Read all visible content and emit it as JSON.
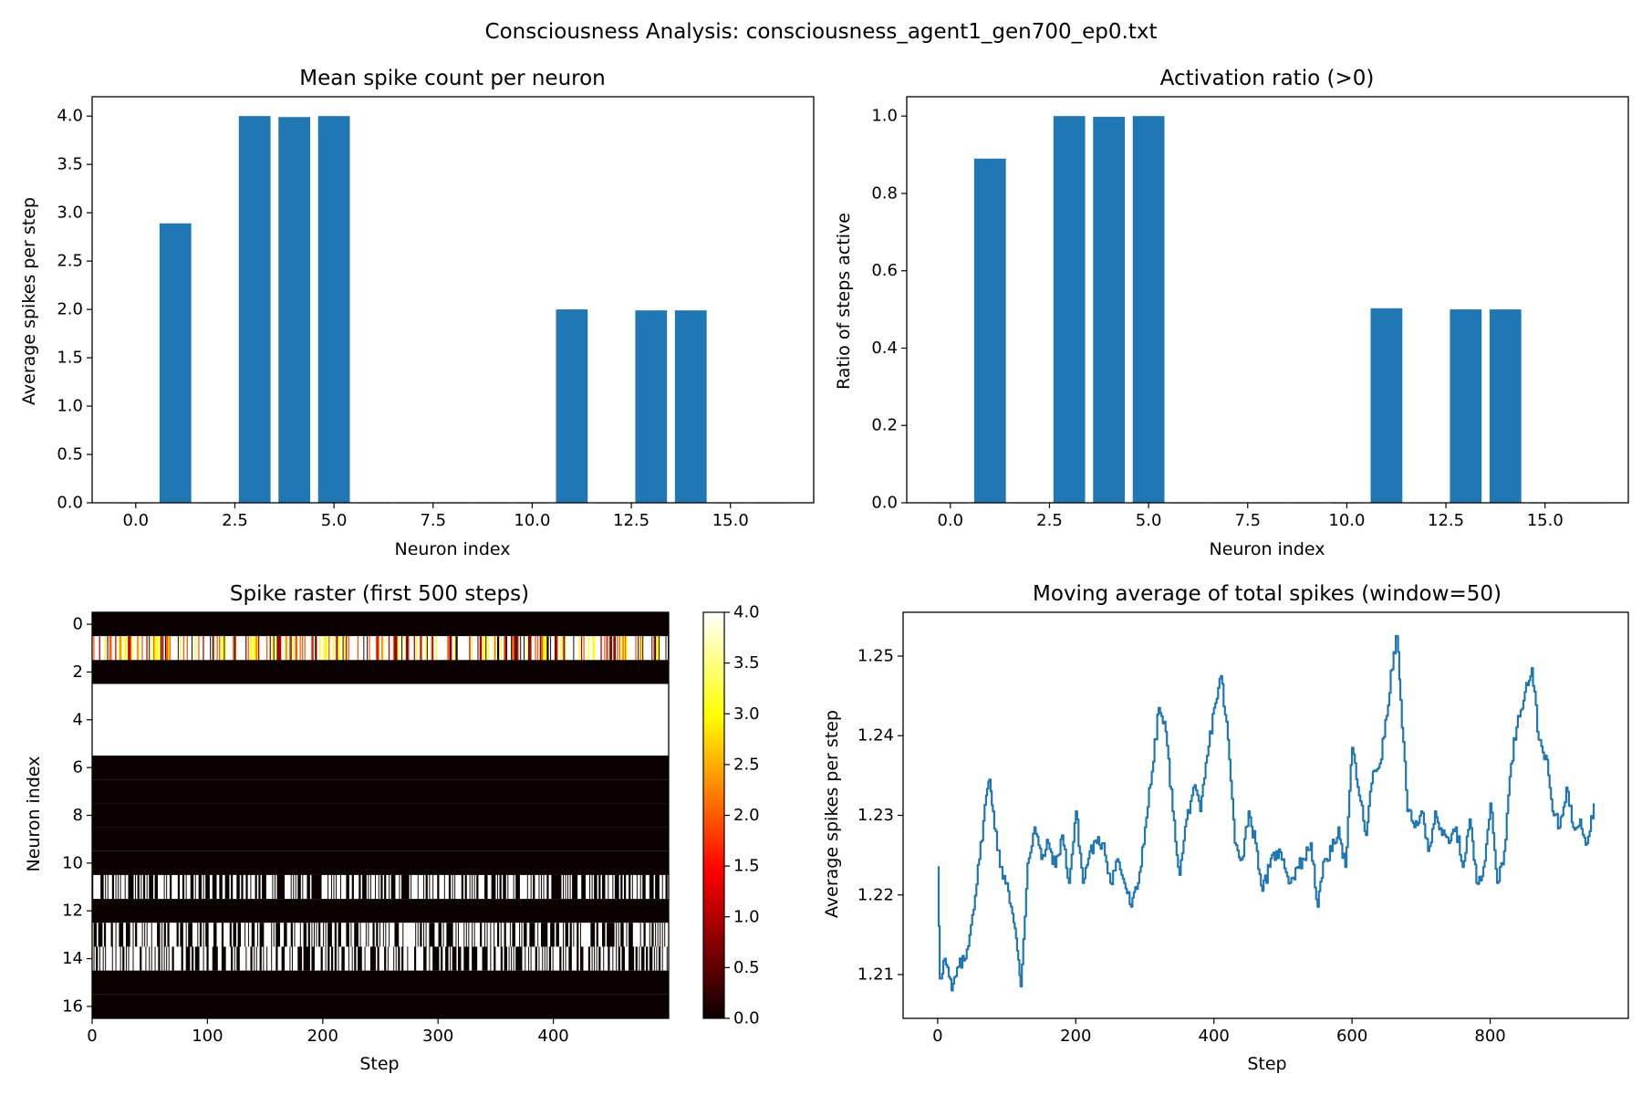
{
  "figure": {
    "suptitle": "Consciousness Analysis: consciousness_agent1_gen700_ep0.txt"
  },
  "colors": {
    "bar": "#1f77b4",
    "line": "#1f77b4",
    "axes": "#000000"
  },
  "chart_data": [
    {
      "id": "mean",
      "type": "bar",
      "title": "Mean spike count per neuron",
      "xlabel": "Neuron index",
      "ylabel": "Average spikes per step",
      "xlim": [
        -1.1,
        17.1
      ],
      "ylim": [
        0,
        4.2
      ],
      "xticks": [
        0,
        2.5,
        5,
        7.5,
        10,
        12.5,
        15
      ],
      "xtick_labels": [
        "0.0",
        "2.5",
        "5.0",
        "7.5",
        "10.0",
        "12.5",
        "15.0"
      ],
      "yticks": [
        0,
        0.5,
        1,
        1.5,
        2,
        2.5,
        3,
        3.5,
        4
      ],
      "ytick_labels": [
        "0.0",
        "0.5",
        "1.0",
        "1.5",
        "2.0",
        "2.5",
        "3.0",
        "3.5",
        "4.0"
      ],
      "categories": [
        0,
        1,
        2,
        3,
        4,
        5,
        6,
        7,
        8,
        9,
        10,
        11,
        12,
        13,
        14,
        15,
        16
      ],
      "values": [
        0,
        2.89,
        0,
        4.0,
        3.99,
        4.0,
        0,
        0,
        0,
        0,
        0,
        2.0,
        0,
        1.99,
        1.99,
        0,
        0
      ]
    },
    {
      "id": "ratio",
      "type": "bar",
      "title": "Activation ratio (>0)",
      "xlabel": "Neuron index",
      "ylabel": "Ratio of steps active",
      "xlim": [
        -1.1,
        17.1
      ],
      "ylim": [
        0,
        1.05
      ],
      "xticks": [
        0,
        2.5,
        5,
        7.5,
        10,
        12.5,
        15
      ],
      "xtick_labels": [
        "0.0",
        "2.5",
        "5.0",
        "7.5",
        "10.0",
        "12.5",
        "15.0"
      ],
      "yticks": [
        0,
        0.2,
        0.4,
        0.6,
        0.8,
        1.0
      ],
      "ytick_labels": [
        "0.0",
        "0.2",
        "0.4",
        "0.6",
        "0.8",
        "1.0"
      ],
      "categories": [
        0,
        1,
        2,
        3,
        4,
        5,
        6,
        7,
        8,
        9,
        10,
        11,
        12,
        13,
        14,
        15,
        16
      ],
      "values": [
        0,
        0.89,
        0,
        1.0,
        0.998,
        1.0,
        0,
        0,
        0,
        0,
        0,
        0.503,
        0,
        0.5,
        0.5,
        0,
        0
      ]
    },
    {
      "id": "raster",
      "type": "heatmap",
      "title": "Spike raster (first 500 steps)",
      "xlabel": "Step",
      "ylabel": "Neuron index",
      "xlim": [
        0,
        500
      ],
      "ylim": [
        16.5,
        -0.5
      ],
      "xticks": [
        0,
        100,
        200,
        300,
        400
      ],
      "xtick_labels": [
        "0",
        "100",
        "200",
        "300",
        "400"
      ],
      "yticks": [
        0,
        2,
        4,
        6,
        8,
        10,
        12,
        14,
        16
      ],
      "ytick_labels": [
        "0",
        "2",
        "4",
        "6",
        "8",
        "10",
        "12",
        "14",
        "16"
      ],
      "colorbar": {
        "range": [
          0,
          4
        ],
        "ticks": [
          0,
          0.5,
          1,
          1.5,
          2,
          2.5,
          3,
          3.5,
          4
        ],
        "tick_labels": [
          "0.0",
          "0.5",
          "1.0",
          "1.5",
          "2.0",
          "2.5",
          "3.0",
          "3.5",
          "4.0"
        ],
        "colormap": "hot"
      },
      "rows": [
        {
          "neuron": 0,
          "pattern": "zero"
        },
        {
          "neuron": 1,
          "pattern": "mixed_0_4"
        },
        {
          "neuron": 2,
          "pattern": "zero"
        },
        {
          "neuron": 3,
          "pattern": "constant",
          "value": 4
        },
        {
          "neuron": 4,
          "pattern": "constant",
          "value": 4
        },
        {
          "neuron": 5,
          "pattern": "constant",
          "value": 4
        },
        {
          "neuron": 6,
          "pattern": "zero"
        },
        {
          "neuron": 7,
          "pattern": "zero"
        },
        {
          "neuron": 8,
          "pattern": "zero"
        },
        {
          "neuron": 9,
          "pattern": "zero"
        },
        {
          "neuron": 10,
          "pattern": "zero"
        },
        {
          "neuron": 11,
          "pattern": "binary_0_4",
          "active_ratio": 0.5
        },
        {
          "neuron": 12,
          "pattern": "zero"
        },
        {
          "neuron": 13,
          "pattern": "binary_0_4",
          "active_ratio": 0.5
        },
        {
          "neuron": 14,
          "pattern": "binary_0_4",
          "active_ratio": 0.5
        },
        {
          "neuron": 15,
          "pattern": "zero"
        },
        {
          "neuron": 16,
          "pattern": "zero"
        }
      ]
    },
    {
      "id": "moving",
      "type": "line",
      "title": "Moving average of total spikes (window=50)",
      "xlabel": "Step",
      "ylabel": "Average spikes per step",
      "xlim": [
        -50,
        1000
      ],
      "ylim": [
        1.2045,
        1.2555
      ],
      "xticks": [
        0,
        200,
        400,
        600,
        800
      ],
      "xtick_labels": [
        "0",
        "200",
        "400",
        "600",
        "800"
      ],
      "yticks": [
        1.21,
        1.22,
        1.23,
        1.24,
        1.25
      ],
      "ytick_labels": [
        "1.21",
        "1.22",
        "1.23",
        "1.24",
        "1.25"
      ],
      "x": [
        0,
        3,
        10,
        20,
        30,
        40,
        50,
        60,
        70,
        75,
        80,
        90,
        100,
        110,
        115,
        120,
        130,
        140,
        150,
        160,
        170,
        180,
        190,
        200,
        210,
        220,
        230,
        240,
        250,
        260,
        270,
        280,
        290,
        300,
        310,
        320,
        330,
        340,
        350,
        360,
        370,
        380,
        390,
        400,
        410,
        420,
        430,
        440,
        450,
        460,
        470,
        480,
        490,
        500,
        510,
        520,
        530,
        540,
        550,
        560,
        570,
        580,
        590,
        600,
        610,
        620,
        630,
        640,
        650,
        660,
        665,
        670,
        680,
        690,
        700,
        710,
        720,
        730,
        740,
        750,
        760,
        770,
        780,
        790,
        800,
        810,
        820,
        830,
        840,
        850,
        860,
        870,
        880,
        890,
        900,
        910,
        920,
        930,
        940,
        950
      ],
      "y": [
        1.2235,
        1.2095,
        1.212,
        1.208,
        1.211,
        1.212,
        1.2175,
        1.2245,
        1.2325,
        1.2345,
        1.2305,
        1.2235,
        1.2215,
        1.2165,
        1.213,
        1.2085,
        1.224,
        1.2285,
        1.2245,
        1.2265,
        1.2235,
        1.2275,
        1.2215,
        1.2305,
        1.2215,
        1.2255,
        1.2265,
        1.2265,
        1.2215,
        1.2245,
        1.2215,
        1.2185,
        1.2215,
        1.2285,
        1.2355,
        1.2435,
        1.2405,
        1.2305,
        1.2225,
        1.2295,
        1.2335,
        1.2305,
        1.2375,
        1.2435,
        1.2475,
        1.2395,
        1.2265,
        1.2245,
        1.2305,
        1.2265,
        1.2205,
        1.2235,
        1.2255,
        1.2245,
        1.2215,
        1.2235,
        1.2245,
        1.2265,
        1.2185,
        1.2245,
        1.2255,
        1.2285,
        1.2235,
        1.2385,
        1.2325,
        1.2275,
        1.2355,
        1.2365,
        1.2425,
        1.2505,
        1.2525,
        1.2445,
        1.2305,
        1.2285,
        1.2305,
        1.2255,
        1.2305,
        1.2275,
        1.2265,
        1.2285,
        1.2235,
        1.2295,
        1.2215,
        1.2235,
        1.2315,
        1.2215,
        1.2255,
        1.2365,
        1.2425,
        1.2455,
        1.2485,
        1.2395,
        1.2375,
        1.2305,
        1.2285,
        1.2335,
        1.2285,
        1.2295,
        1.2265,
        1.2315
      ]
    }
  ]
}
